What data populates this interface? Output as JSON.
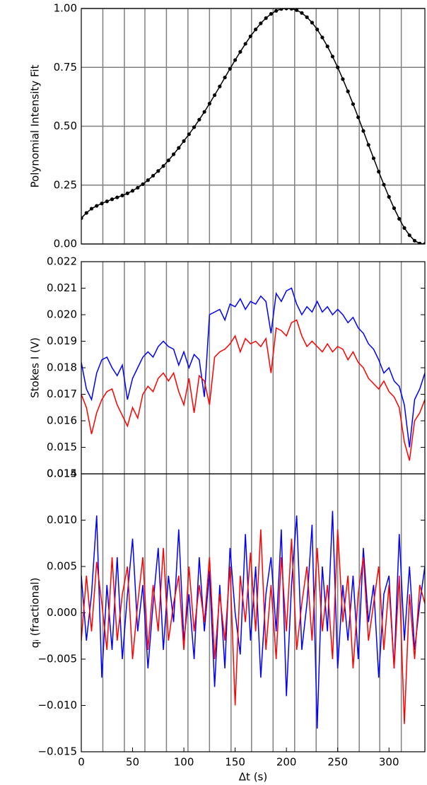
{
  "chart_data": [
    {
      "type": "line",
      "markers": true,
      "ylabel": "Polynomial Intensity Fit",
      "grid": true,
      "xlim": [
        0,
        335
      ],
      "ylim": [
        0,
        1
      ],
      "yticks": [
        {
          "value": 0,
          "label": "0.00"
        },
        {
          "value": 0.25,
          "label": "0.25"
        },
        {
          "value": 0.5,
          "label": "0.50"
        },
        {
          "value": 0.75,
          "label": "0.75"
        },
        {
          "value": 1,
          "label": "1.00"
        }
      ],
      "vlines": [
        21,
        42,
        62,
        83,
        104,
        125,
        146,
        166,
        187,
        208,
        229,
        250,
        271,
        291,
        312
      ],
      "vline_color": "#808080",
      "x": [
        0,
        5,
        10,
        15,
        20,
        25,
        30,
        35,
        40,
        45,
        50,
        55,
        60,
        65,
        70,
        75,
        80,
        85,
        90,
        95,
        100,
        105,
        110,
        115,
        120,
        125,
        130,
        135,
        140,
        145,
        150,
        155,
        160,
        165,
        170,
        175,
        180,
        185,
        190,
        195,
        200,
        205,
        210,
        215,
        220,
        225,
        230,
        235,
        240,
        245,
        250,
        255,
        260,
        265,
        270,
        275,
        280,
        285,
        290,
        295,
        300,
        305,
        310,
        315,
        320,
        325,
        330,
        335
      ],
      "series": [
        {
          "color": "#000000",
          "values": [
            0.11,
            0.132,
            0.15,
            0.162,
            0.172,
            0.181,
            0.19,
            0.198,
            0.206,
            0.215,
            0.226,
            0.239,
            0.254,
            0.271,
            0.29,
            0.31,
            0.331,
            0.355,
            0.381,
            0.408,
            0.437,
            0.466,
            0.496,
            0.528,
            0.561,
            0.596,
            0.632,
            0.669,
            0.707,
            0.744,
            0.781,
            0.816,
            0.85,
            0.882,
            0.911,
            0.937,
            0.959,
            0.977,
            0.99,
            0.998,
            1.0,
            0.999,
            0.993,
            0.981,
            0.963,
            0.94,
            0.911,
            0.877,
            0.839,
            0.796,
            0.75,
            0.7,
            0.648,
            0.594,
            0.538,
            0.48,
            0.421,
            0.364,
            0.307,
            0.252,
            0.2,
            0.152,
            0.107,
            0.068,
            0.037,
            0.014,
            0.002,
            0.0
          ]
        }
      ]
    },
    {
      "type": "line",
      "ylabel": "Stokes I (V)",
      "grid": false,
      "xlim": [
        0,
        335
      ],
      "ylim": [
        0.014,
        0.022
      ],
      "yticks": [
        0.014,
        0.015,
        0.016,
        0.017,
        0.018,
        0.019,
        {
          "value": 0.02,
          "label": "0.020"
        },
        0.021,
        0.022
      ],
      "vlines": [
        21,
        42,
        62,
        83,
        104,
        125,
        146,
        166,
        187,
        208,
        229,
        250,
        271,
        291,
        312
      ],
      "vline_color": "#808080",
      "x": [
        0,
        5,
        10,
        15,
        20,
        25,
        30,
        35,
        40,
        45,
        50,
        55,
        60,
        65,
        70,
        75,
        80,
        85,
        90,
        95,
        100,
        105,
        110,
        115,
        120,
        125,
        130,
        135,
        140,
        145,
        150,
        155,
        160,
        165,
        170,
        175,
        180,
        185,
        190,
        195,
        200,
        205,
        210,
        215,
        220,
        225,
        230,
        235,
        240,
        245,
        250,
        255,
        260,
        265,
        270,
        275,
        280,
        285,
        290,
        295,
        300,
        305,
        310,
        315,
        320,
        325,
        330,
        335
      ],
      "series": [
        {
          "color": "#0000ff",
          "values": [
            0.0182,
            0.0172,
            0.0168,
            0.0178,
            0.0183,
            0.0184,
            0.018,
            0.0177,
            0.0181,
            0.0168,
            0.0176,
            0.018,
            0.0184,
            0.0186,
            0.0184,
            0.0188,
            0.019,
            0.0188,
            0.0187,
            0.0181,
            0.0186,
            0.018,
            0.0185,
            0.0183,
            0.0169,
            0.02,
            0.0201,
            0.0202,
            0.0198,
            0.0204,
            0.0203,
            0.0206,
            0.0202,
            0.0205,
            0.0204,
            0.0207,
            0.0205,
            0.0193,
            0.0208,
            0.0205,
            0.0209,
            0.021,
            0.0204,
            0.02,
            0.0203,
            0.0201,
            0.0205,
            0.0201,
            0.0203,
            0.02,
            0.0202,
            0.02,
            0.0197,
            0.0199,
            0.0195,
            0.0193,
            0.0189,
            0.0187,
            0.0183,
            0.0178,
            0.018,
            0.0175,
            0.0173,
            0.0166,
            0.015,
            0.0168,
            0.0172,
            0.0178
          ]
        },
        {
          "color": "#ff0000",
          "values": [
            0.017,
            0.0165,
            0.0155,
            0.0163,
            0.0168,
            0.0171,
            0.0172,
            0.0166,
            0.0162,
            0.0158,
            0.0165,
            0.0161,
            0.017,
            0.0173,
            0.0171,
            0.0176,
            0.0178,
            0.0175,
            0.0178,
            0.0171,
            0.0166,
            0.0176,
            0.0163,
            0.0177,
            0.0175,
            0.0166,
            0.0184,
            0.0186,
            0.0187,
            0.0189,
            0.0192,
            0.0186,
            0.0191,
            0.0189,
            0.019,
            0.0188,
            0.0191,
            0.0178,
            0.0195,
            0.0194,
            0.0192,
            0.0197,
            0.0198,
            0.0192,
            0.0188,
            0.019,
            0.0188,
            0.0186,
            0.0189,
            0.0186,
            0.0188,
            0.0187,
            0.0183,
            0.0186,
            0.0182,
            0.018,
            0.0176,
            0.0174,
            0.0172,
            0.0175,
            0.0171,
            0.0169,
            0.0165,
            0.0152,
            0.0145,
            0.016,
            0.0163,
            0.0168
          ]
        }
      ]
    },
    {
      "type": "line",
      "ylabel": "qᵢ (fractional)",
      "xlabel": "Δt (s)",
      "grid": false,
      "xlim": [
        0,
        335
      ],
      "xticks": [
        0,
        50,
        100,
        150,
        200,
        250,
        300
      ],
      "ylim": [
        -0.015,
        0.015
      ],
      "yticks": [
        {
          "value": -0.015,
          "label": "−0.015"
        },
        {
          "value": -0.01,
          "label": "−0.010"
        },
        {
          "value": -0.005,
          "label": "−0.005"
        },
        {
          "value": 0,
          "label": "0.000"
        },
        0.005,
        {
          "value": 0.01,
          "label": "0.010"
        },
        0.015
      ],
      "vlines": [
        21,
        42,
        62,
        83,
        104,
        125,
        146,
        166,
        187,
        208,
        229,
        250,
        271,
        291,
        312
      ],
      "vline_color": "#808080",
      "x": [
        0,
        5,
        10,
        15,
        20,
        25,
        30,
        35,
        40,
        45,
        50,
        55,
        60,
        65,
        70,
        75,
        80,
        85,
        90,
        95,
        100,
        105,
        110,
        115,
        120,
        125,
        130,
        135,
        140,
        145,
        150,
        155,
        160,
        165,
        170,
        175,
        180,
        185,
        190,
        195,
        200,
        205,
        210,
        215,
        220,
        225,
        230,
        235,
        240,
        245,
        250,
        255,
        260,
        265,
        270,
        275,
        280,
        285,
        290,
        295,
        300,
        305,
        310,
        315,
        320,
        325,
        330,
        335
      ],
      "series": [
        {
          "color": "#0000ff",
          "values": [
            0.004,
            -0.003,
            0.002,
            0.0105,
            -0.007,
            0.003,
            -0.004,
            0.006,
            -0.005,
            0.002,
            0.008,
            -0.002,
            0.003,
            -0.006,
            0.001,
            0.007,
            -0.004,
            0.004,
            -0.001,
            0.009,
            -0.003,
            0.002,
            -0.005,
            0.006,
            -0.002,
            0.0045,
            -0.008,
            0.003,
            -0.006,
            0.007,
            0.0,
            -0.0045,
            0.0085,
            -0.003,
            0.005,
            -0.007,
            0.002,
            0.006,
            -0.002,
            0.009,
            -0.009,
            0.003,
            0.0105,
            -0.004,
            0.001,
            0.0095,
            -0.0125,
            0.005,
            -0.002,
            0.011,
            -0.006,
            0.003,
            -0.003,
            0.004,
            -0.005,
            0.007,
            -0.001,
            0.003,
            -0.007,
            0.002,
            0.004,
            -0.006,
            0.0085,
            -0.003,
            0.005,
            -0.004,
            0.001,
            0.005
          ]
        },
        {
          "color": "#ff0000",
          "values": [
            -0.003,
            0.004,
            -0.002,
            0.0055,
            0.001,
            -0.004,
            0.006,
            -0.003,
            0.002,
            0.005,
            -0.005,
            0.001,
            0.006,
            -0.004,
            0.003,
            -0.002,
            0.007,
            -0.003,
            0.001,
            0.004,
            -0.004,
            0.005,
            -0.002,
            0.003,
            -0.001,
            0.006,
            -0.005,
            0.002,
            -0.003,
            0.005,
            -0.01,
            0.004,
            -0.001,
            0.0065,
            -0.002,
            0.009,
            -0.004,
            0.003,
            -0.005,
            0.006,
            -0.002,
            0.008,
            -0.004,
            0.001,
            0.005,
            -0.003,
            0.007,
            -0.002,
            0.003,
            -0.005,
            0.009,
            -0.001,
            0.004,
            -0.006,
            0.002,
            0.006,
            -0.003,
            0.001,
            0.005,
            -0.004,
            0.003,
            -0.006,
            0.004,
            -0.012,
            0.002,
            -0.005,
            0.003,
            0.001
          ]
        }
      ]
    }
  ]
}
